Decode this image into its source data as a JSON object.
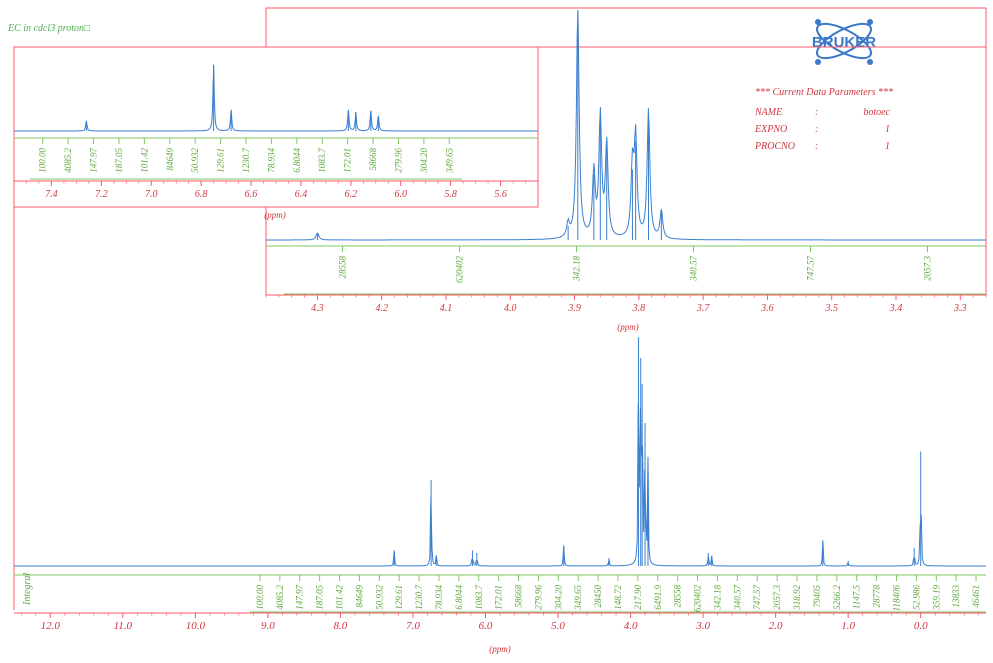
{
  "sample_title": "EC in cdcl3 proton□",
  "logo": {
    "text": "BRUKER"
  },
  "parameters": {
    "heading": "*** Current Data Parameters ***",
    "rows": [
      {
        "label": "NAME",
        "value": "botoec"
      },
      {
        "label": "EXPNO",
        "value": "1"
      },
      {
        "label": "PROCNO",
        "value": "1"
      }
    ]
  },
  "colors": {
    "frame": "#ff5a6a",
    "spectrum": "#3a7fd0",
    "integral": "#7fc860",
    "integral_text": "#5ea83a",
    "axis_text": "#d0363f",
    "title_text": "#4caf50",
    "param_text": "#d0363f"
  },
  "chart_data": [
    {
      "id": "main",
      "type": "line",
      "xlabel": "(ppm)",
      "integral_label": "Integral",
      "xlim": [
        12.5,
        -0.9
      ],
      "ticks": [
        "12.0",
        "11.0",
        "10.0",
        "9.0",
        "8.0",
        "7.0",
        "6.0",
        "5.0",
        "4.0",
        "3.0",
        "2.0",
        "1.0",
        "0.0"
      ],
      "peaks": [
        {
          "x": 7.26,
          "h": 0.06
        },
        {
          "x": 6.75,
          "h": 0.33
        },
        {
          "x": 6.68,
          "h": 0.04
        },
        {
          "x": 6.18,
          "h": 0.06
        },
        {
          "x": 6.12,
          "h": 0.05
        },
        {
          "x": 4.92,
          "h": 0.08
        },
        {
          "x": 4.3,
          "h": 0.03
        },
        {
          "x": 3.89,
          "h": 0.88
        },
        {
          "x": 3.86,
          "h": 0.8
        },
        {
          "x": 3.84,
          "h": 0.7
        },
        {
          "x": 3.8,
          "h": 0.55
        },
        {
          "x": 3.76,
          "h": 0.4
        },
        {
          "x": 2.93,
          "h": 0.05
        },
        {
          "x": 2.88,
          "h": 0.04
        },
        {
          "x": 1.35,
          "h": 0.1
        },
        {
          "x": 1.0,
          "h": 0.02
        },
        {
          "x": 0.09,
          "h": 0.07
        },
        {
          "x": 0.0,
          "h": 0.44
        }
      ],
      "integrals": [
        "100.00",
        "4085.2",
        "147.97",
        "187.05",
        "101.42",
        "84649",
        "50.932",
        "129.61",
        "1230.7",
        "78.934",
        "6.8044",
        "1083.7",
        "172.01",
        "58668",
        "279.96",
        "304.20",
        "349.65",
        "28450",
        "148.72",
        "217.90",
        "6491.9",
        "28558",
        "620402",
        "342.18",
        "340.57",
        "747.57",
        "2057.3",
        "318.92",
        "79405",
        "5266.2",
        "1147.5",
        "28778",
        "118406",
        "52.986",
        "359.19",
        "13833",
        "46461"
      ]
    },
    {
      "id": "inset-aromatic",
      "type": "line",
      "xlabel": "(ppm)",
      "xlim": [
        7.55,
        5.45
      ],
      "ticks": [
        "7.4",
        "7.2",
        "7.0",
        "6.8",
        "6.6",
        "6.4",
        "6.2",
        "6.0",
        "5.8",
        "5.6"
      ],
      "peaks": [
        {
          "x": 7.26,
          "h": 0.12
        },
        {
          "x": 6.75,
          "h": 0.78
        },
        {
          "x": 6.68,
          "h": 0.25
        },
        {
          "x": 6.21,
          "h": 0.25
        },
        {
          "x": 6.18,
          "h": 0.22
        },
        {
          "x": 6.12,
          "h": 0.24
        },
        {
          "x": 6.09,
          "h": 0.18
        }
      ],
      "integrals": [
        "100.00",
        "4085.2",
        "147.97",
        "187.05",
        "101.42",
        "84649",
        "50.932",
        "129.61",
        "1230.7",
        "78.934",
        "6.8044",
        "1083.7",
        "172.01",
        "58668",
        "279.96",
        "304.20",
        "349.65"
      ]
    },
    {
      "id": "inset-aliphatic",
      "type": "line",
      "xlabel": "(ppm)",
      "xlim": [
        4.38,
        3.26
      ],
      "ticks": [
        "4.3",
        "4.2",
        "4.1",
        "4.0",
        "3.9",
        "3.8",
        "3.7",
        "3.6",
        "3.5",
        "3.4",
        "3.3"
      ],
      "peaks": [
        {
          "x": 3.895,
          "h": 0.98
        },
        {
          "x": 3.87,
          "h": 0.28
        },
        {
          "x": 3.86,
          "h": 0.52
        },
        {
          "x": 3.85,
          "h": 0.4
        },
        {
          "x": 3.81,
          "h": 0.3
        },
        {
          "x": 3.805,
          "h": 0.42
        },
        {
          "x": 3.785,
          "h": 0.55
        },
        {
          "x": 3.765,
          "h": 0.12
        },
        {
          "x": 3.91,
          "h": 0.06
        },
        {
          "x": 4.3,
          "h": 0.03
        }
      ],
      "integrals": [
        "28558",
        "620402",
        "342.18",
        "340.57",
        "747.57",
        "2057.3"
      ]
    }
  ]
}
